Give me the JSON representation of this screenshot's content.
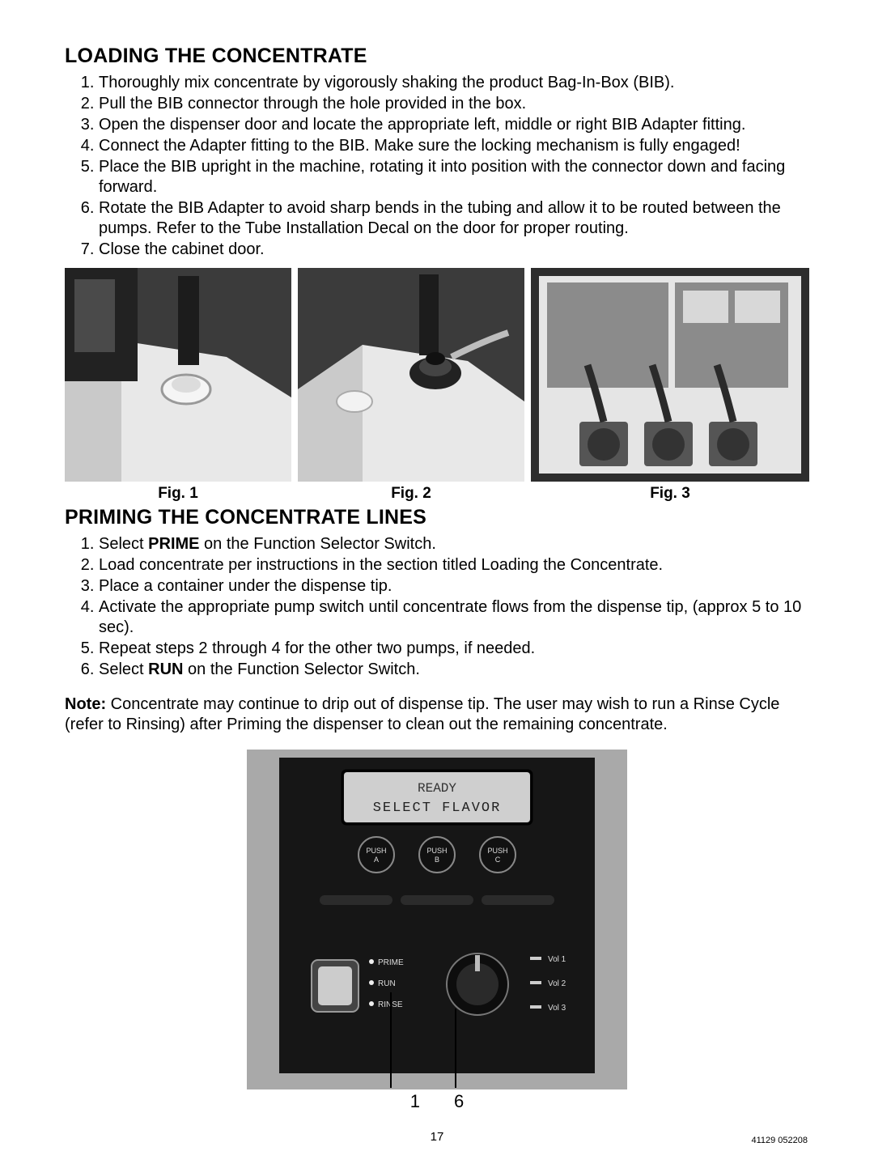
{
  "section1": {
    "heading": "LOADING THE CONCENTRATE",
    "steps": [
      "Thoroughly mix concentrate by vigorously shaking the product Bag-In-Box (BIB).",
      "Pull the BIB connector through the hole provided in the box.",
      "Open the dispenser door and locate the appropriate left, middle or right BIB Adapter fitting.",
      "Connect the Adapter fitting to the BIB. Make sure the locking mechanism is fully engaged!",
      "Place the BIB upright in the machine, rotating it into position with the connector down and facing forward.",
      "Rotate the BIB Adapter to avoid sharp bends in the tubing and allow it to be routed between the pumps. Refer to the Tube Installation Decal on the door for proper routing.",
      "Close the cabinet door."
    ]
  },
  "figs": {
    "f1": "Fig. 1",
    "f2": "Fig. 2",
    "f3": "Fig. 3"
  },
  "section2": {
    "heading": "PRIMING THE CONCENTRATE LINES",
    "steps_html": [
      "Select <b>PRIME</b> on the Function Selector Switch.",
      "Load concentrate per instructions in the section titled Loading the Concentrate.",
      "Place a container under the dispense tip.",
      "Activate the appropriate pump switch until concentrate flows from the dispense tip, (approx 5 to 10 sec).",
      "Repeat steps 2 through 4 for the other two pumps, if needed.",
      "Select <b>RUN</b> on the Function Selector Switch."
    ]
  },
  "note": {
    "label": "Note:",
    "text": " Concentrate may continue to drip out of dispense tip. The user may wish to run a Rinse Cycle (refer to Rinsing) after Priming the dispenser to clean out the remaining concentrate."
  },
  "panel": {
    "display_line1": "READY",
    "display_line2": "SELECT  FLAVOR",
    "buttons": [
      "PUSH A",
      "PUSH B",
      "PUSH C"
    ],
    "mode_labels": [
      "PRIME",
      "RUN",
      "RINSE"
    ],
    "vol_labels": [
      "Vol 1",
      "Vol 2",
      "Vol 3"
    ],
    "callouts": "1  6",
    "colors": {
      "panel_bg": "#1a1a1a",
      "frame_bg": "#a9a9a9",
      "display_bg": "#cfcfcf"
    }
  },
  "footer": {
    "page": "17",
    "code": "41129 052208"
  },
  "style": {
    "body_font_size": 20,
    "heading_font_size": 25,
    "caption_font_size": 19,
    "text_color": "#000000",
    "bg_color": "#ffffff"
  }
}
